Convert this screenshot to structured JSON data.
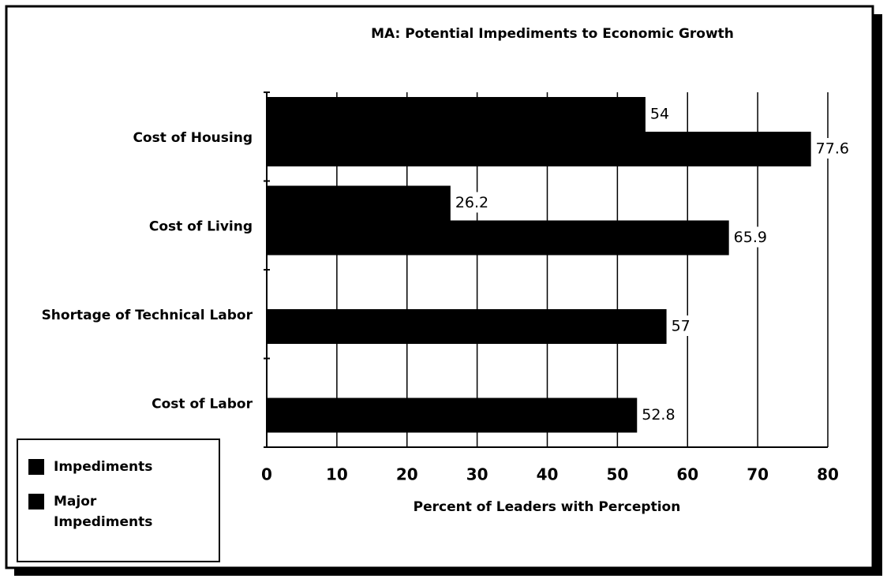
{
  "chart_data": {
    "type": "hbar",
    "title": "MA:  Potential Impediments to Economic Growth",
    "xlabel": "Percent of Leaders with Perception",
    "categories": [
      "Cost of Housing",
      "Cost of Living",
      "Shortage of Technical Labor",
      "Cost of Labor"
    ],
    "series": [
      {
        "name": "Impediments",
        "color": "#000000",
        "values": [
          54,
          26.2,
          null,
          null
        ]
      },
      {
        "name": "Major Impediments",
        "color": "#000000",
        "values": [
          77.6,
          65.9,
          57,
          52.8
        ]
      }
    ],
    "xlim": [
      0,
      80
    ],
    "xticks": [
      0,
      10,
      20,
      30,
      40,
      50,
      60,
      70,
      80
    ],
    "grid": true,
    "legend": "lower left"
  }
}
